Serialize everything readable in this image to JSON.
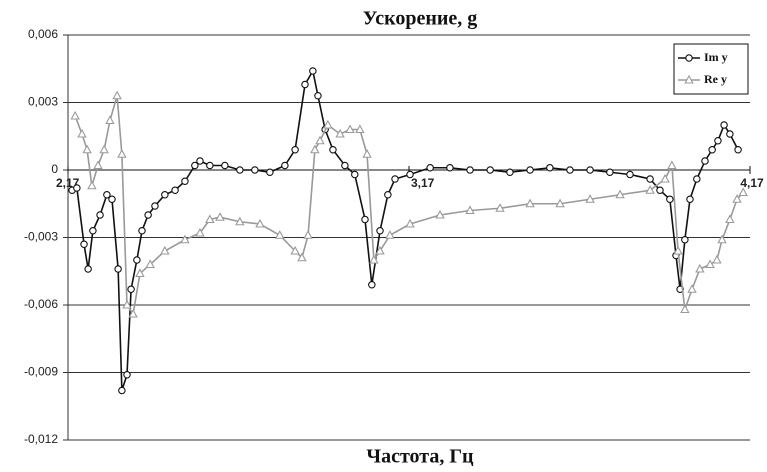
{
  "chart_data": {
    "type": "line",
    "title": "Ускорение, g",
    "x_label": "Частота, Гц",
    "xlim": [
      2.17,
      4.17
    ],
    "xticks": [
      {
        "value": 2.17,
        "label": "2,17"
      },
      {
        "value": 3.17,
        "label": "3,17"
      },
      {
        "value": 4.17,
        "label": "4,17"
      }
    ],
    "ylim": [
      -0.012,
      0.006
    ],
    "yticks": [
      {
        "value": 0.006,
        "label": "0,006"
      },
      {
        "value": 0.003,
        "label": "0,003"
      },
      0,
      {
        "value": -0.003,
        "label": "-0,003"
      },
      {
        "value": -0.006,
        "label": "-0,006"
      },
      {
        "value": -0.009,
        "label": "-0,009"
      },
      {
        "value": -0.012,
        "label": "-0,012"
      }
    ],
    "grid": true,
    "legend": "top-right",
    "series": [
      {
        "name": "Im y",
        "color": "#111111",
        "marker": "circle",
        "x": [
          2.182,
          2.196,
          2.217,
          2.229,
          2.243,
          2.264,
          2.284,
          2.299,
          2.317,
          2.328,
          2.343,
          2.355,
          2.372,
          2.387,
          2.405,
          2.425,
          2.454,
          2.484,
          2.513,
          2.542,
          2.557,
          2.586,
          2.63,
          2.674,
          2.718,
          2.762,
          2.806,
          2.836,
          2.865,
          2.888,
          2.903,
          2.924,
          2.947,
          2.982,
          3.011,
          3.041,
          3.061,
          3.085,
          3.108,
          3.129,
          3.173,
          3.232,
          3.29,
          3.349,
          3.408,
          3.466,
          3.525,
          3.583,
          3.642,
          3.701,
          3.759,
          3.818,
          3.877,
          3.906,
          3.935,
          3.953,
          3.965,
          3.979,
          3.994,
          4.014,
          4.038,
          4.059,
          4.076,
          4.094,
          4.111,
          4.135
        ],
        "values": [
          -0.0009,
          -0.0008,
          -0.0033,
          -0.0044,
          -0.0027,
          -0.002,
          -0.0011,
          -0.0013,
          -0.0044,
          -0.0098,
          -0.0091,
          -0.0053,
          -0.004,
          -0.0027,
          -0.002,
          -0.0016,
          -0.0011,
          -0.0009,
          -0.0005,
          0.0002,
          0.0004,
          0.0002,
          0.0002,
          0,
          0,
          -0.0001,
          0.0002,
          0.0009,
          0.0038,
          0.0044,
          0.0033,
          0.0018,
          0.0009,
          0.0002,
          -0.0002,
          -0.0022,
          -0.0051,
          -0.0027,
          -0.0011,
          -0.0004,
          -0.0002,
          0.0001,
          0.0001,
          0,
          0,
          -0.0001,
          0,
          0.0001,
          0,
          0,
          -0.0001,
          -0.0002,
          -0.0004,
          -0.0009,
          -0.0013,
          -0.0038,
          -0.0053,
          -0.0031,
          -0.0013,
          -0.0004,
          0.0004,
          0.0009,
          0.0013,
          0.002,
          0.0016,
          0.0009
        ]
      },
      {
        "name": "Re y",
        "color": "#999999",
        "marker": "triangle",
        "x": [
          2.191,
          2.211,
          2.226,
          2.24,
          2.258,
          2.276,
          2.293,
          2.314,
          2.328,
          2.343,
          2.361,
          2.381,
          2.411,
          2.454,
          2.513,
          2.557,
          2.586,
          2.616,
          2.674,
          2.733,
          2.791,
          2.836,
          2.856,
          2.874,
          2.894,
          2.909,
          2.932,
          2.968,
          2.997,
          3.026,
          3.047,
          3.067,
          3.085,
          3.114,
          3.173,
          3.261,
          3.349,
          3.437,
          3.525,
          3.613,
          3.701,
          3.789,
          3.877,
          3.921,
          3.941,
          3.959,
          3.979,
          4.0,
          4.023,
          4.053,
          4.073,
          4.088,
          4.111,
          4.132,
          4.15
        ],
        "values": [
          0.0024,
          0.0016,
          0.0009,
          -0.0007,
          0.0002,
          0.0009,
          0.0022,
          0.0033,
          0.0007,
          -0.006,
          -0.0064,
          -0.0046,
          -0.0042,
          -0.0036,
          -0.0031,
          -0.0028,
          -0.0022,
          -0.0021,
          -0.0023,
          -0.0024,
          -0.0029,
          -0.0036,
          -0.0039,
          -0.0029,
          0.0009,
          0.0013,
          0.002,
          0.0016,
          0.0018,
          0.0018,
          0.0007,
          -0.004,
          -0.0036,
          -0.0029,
          -0.0024,
          -0.002,
          -0.0018,
          -0.0017,
          -0.0015,
          -0.0015,
          -0.0013,
          -0.0011,
          -0.0009,
          -0.0004,
          0.0002,
          -0.0036,
          -0.0062,
          -0.0053,
          -0.0044,
          -0.0042,
          -0.004,
          -0.0031,
          -0.0022,
          -0.0013,
          -0.001
        ]
      }
    ]
  }
}
